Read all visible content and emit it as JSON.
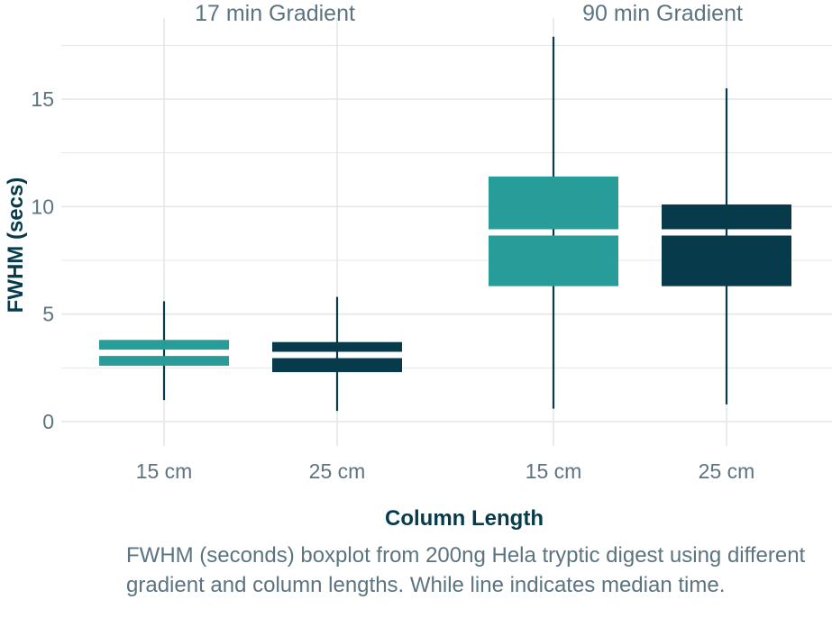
{
  "chart_data": {
    "type": "boxplot",
    "ylabel": "FWHM (secs)",
    "xlabel": "Column Length",
    "ylim": [
      -1,
      18.5
    ],
    "yticks": [
      0,
      5,
      10,
      15
    ],
    "grid": true,
    "colors": {
      "15 cm": "#289c98",
      "25 cm": "#073b4c",
      "median": "#ffffff",
      "grid": "#e3e7e9"
    },
    "facets": [
      {
        "title": "17 min Gradient",
        "boxes": [
          {
            "category": "15 cm",
            "min": 1.0,
            "q1": 2.6,
            "median": 3.2,
            "q3": 3.8,
            "max": 5.6
          },
          {
            "category": "25 cm",
            "min": 0.5,
            "q1": 2.3,
            "median": 3.1,
            "q3": 3.7,
            "max": 5.8
          }
        ]
      },
      {
        "title": "90 min Gradient",
        "boxes": [
          {
            "category": "15 cm",
            "min": 0.6,
            "q1": 6.3,
            "median": 8.8,
            "q3": 11.4,
            "max": 17.9
          },
          {
            "category": "25 cm",
            "min": 0.8,
            "q1": 6.3,
            "median": 8.8,
            "q3": 10.1,
            "max": 15.5
          }
        ]
      }
    ]
  },
  "caption": "FWHM (seconds) boxplot from 200ng Hela tryptic digest using different gradient and column lengths. While line indicates median time."
}
